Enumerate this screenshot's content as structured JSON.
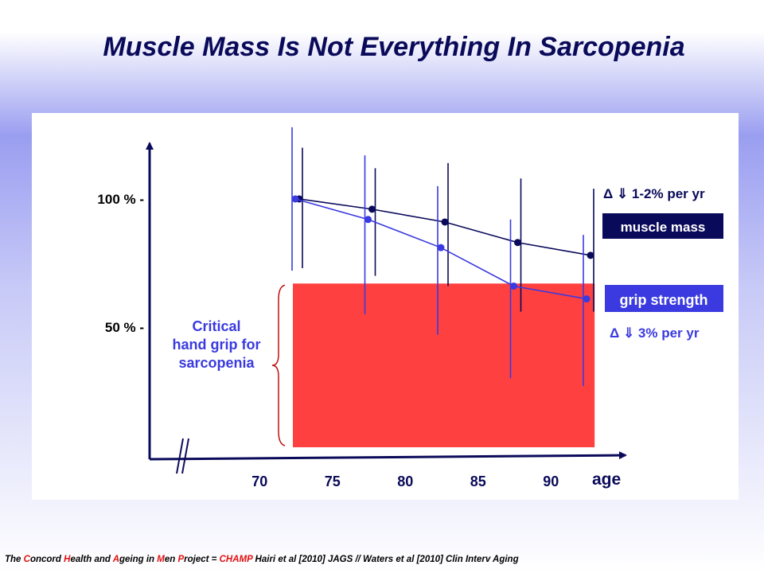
{
  "slide": {
    "title": "Muscle Mass Is Not Everything In Sarcopenia"
  },
  "chart_data": {
    "type": "line",
    "x": [
      72.5,
      77.5,
      82.5,
      87.5,
      92.5
    ],
    "x_ticks": [
      "70",
      "75",
      "80",
      "85",
      "90"
    ],
    "x_tick_values": [
      70,
      75,
      80,
      85,
      90
    ],
    "xlabel": "age",
    "y_ticks": [
      "100 % -",
      "50 % -"
    ],
    "y_tick_values": [
      100,
      50
    ],
    "series": [
      {
        "name": "muscle mass",
        "color": "#0a0a5a",
        "values": [
          100,
          96,
          91,
          83,
          78
        ],
        "err_low": [
          73,
          70,
          66,
          56,
          56
        ],
        "err_high": [
          120,
          112,
          114,
          108,
          104
        ],
        "label": "muscle mass",
        "rate": "Δ ⇓ 1-2% per yr"
      },
      {
        "name": "grip strength",
        "color": "#3a3ae0",
        "values": [
          100,
          92,
          81,
          66,
          61
        ],
        "err_low": [
          72,
          55,
          47,
          30,
          27
        ],
        "err_high": [
          128,
          117,
          105,
          92,
          86
        ],
        "label": "grip strength",
        "rate": "Δ ⇓ 3% per yr"
      }
    ],
    "threshold": {
      "label_lines": [
        "Critical",
        "hand grip for",
        "sarcopenia"
      ],
      "value": 67,
      "x_range": [
        72.5,
        93
      ],
      "color": "#ff4040"
    }
  },
  "footer": {
    "t1": "The ",
    "r1": "C",
    "t2": "oncord ",
    "r2": "H",
    "t3": "ealth and ",
    "r3": "A",
    "t4": "geing in ",
    "r4": "M",
    "t5": "en ",
    "r5": "P",
    "t6": "roject = ",
    "r6": "CHAMP",
    "t7": "  Hairi et al [2010]  JAGS  // Waters  et al [2010]  Clin Interv Aging"
  }
}
